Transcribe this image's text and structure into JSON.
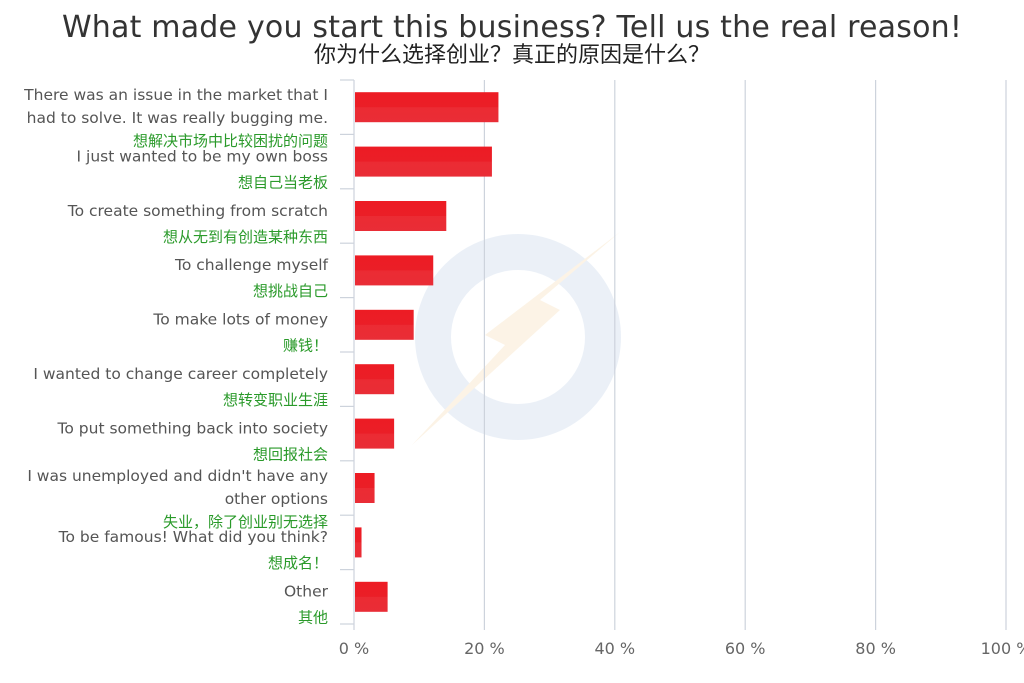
{
  "chart_data": {
    "type": "bar",
    "orientation": "horizontal",
    "title": "What made you start this business? Tell us the real reason!",
    "subtitle": "你为什么选择创业？真正的原因是什么？",
    "xlabel": "",
    "ylabel": "",
    "xlim": [
      0,
      100
    ],
    "x_ticks": [
      "0 %",
      "20 %",
      "40 %",
      "60 %",
      "80 %",
      "100 %"
    ],
    "grid": true,
    "legend": "none",
    "categories": [
      {
        "en": [
          "There was an issue in the market that I",
          "had to solve. It was really bugging me."
        ],
        "zh": "想解决市场中比较困扰的问题"
      },
      {
        "en": [
          "I just wanted to be my own boss"
        ],
        "zh": "想自己当老板"
      },
      {
        "en": [
          "To create something from scratch"
        ],
        "zh": "想从无到有创造某种东西"
      },
      {
        "en": [
          "To challenge myself"
        ],
        "zh": "想挑战自己"
      },
      {
        "en": [
          "To make lots of money"
        ],
        "zh": "赚钱！"
      },
      {
        "en": [
          "I wanted to change career completely"
        ],
        "zh": "想转变职业生涯"
      },
      {
        "en": [
          "To put something back into society"
        ],
        "zh": "想回报社会"
      },
      {
        "en": [
          "I was unemployed and didn't have any",
          "other options"
        ],
        "zh": "失业，除了创业别无选择"
      },
      {
        "en": [
          "To be famous! What did you think?"
        ],
        "zh": "想成名！"
      },
      {
        "en": [
          "Other"
        ],
        "zh": "其他"
      }
    ],
    "values": [
      22,
      21,
      14,
      12,
      9,
      6,
      6,
      3,
      1,
      5
    ],
    "bar_color": "#e8202a",
    "grid_color": "#cdd3dc",
    "en_label_color": "#555555",
    "zh_label_color": "#2a9a2a"
  }
}
